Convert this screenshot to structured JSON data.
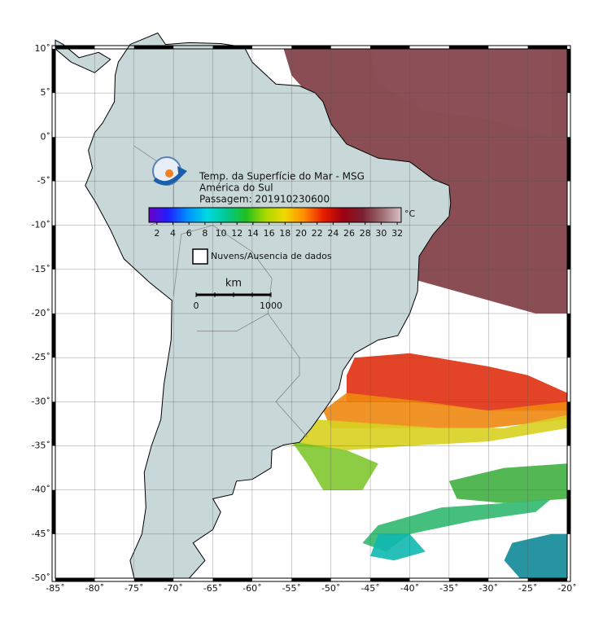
{
  "map": {
    "title_lines": [
      "Temp. da Superfície do Mar - MSG",
      "América do Sul",
      "Passagem: 201910230600"
    ],
    "xlim": [
      -85,
      -20
    ],
    "ylim": [
      -50,
      10
    ],
    "xticks": [
      {
        "value": -85,
        "label": "-85˚"
      },
      {
        "value": -80,
        "label": "-80˚"
      },
      {
        "value": -75,
        "label": "-75˚"
      },
      {
        "value": -70,
        "label": "-70˚"
      },
      {
        "value": -65,
        "label": "-65˚"
      },
      {
        "value": -60,
        "label": "-60˚"
      },
      {
        "value": -55,
        "label": "-55˚"
      },
      {
        "value": -50,
        "label": "-50˚"
      },
      {
        "value": -45,
        "label": "-45˚"
      },
      {
        "value": -40,
        "label": "-40˚"
      },
      {
        "value": -35,
        "label": "-35˚"
      },
      {
        "value": -30,
        "label": "-30˚"
      },
      {
        "value": -25,
        "label": "-25˚"
      },
      {
        "value": -20,
        "label": "-20˚"
      }
    ],
    "yticks": [
      {
        "value": 10,
        "label": "10˚"
      },
      {
        "value": 5,
        "label": "5˚"
      },
      {
        "value": 0,
        "label": "0˚"
      },
      {
        "value": -5,
        "label": "-5˚"
      },
      {
        "value": -10,
        "label": "-10˚"
      },
      {
        "value": -15,
        "label": "-15˚"
      },
      {
        "value": -20,
        "label": "-20˚"
      },
      {
        "value": -25,
        "label": "-25˚"
      },
      {
        "value": -30,
        "label": "-30˚"
      },
      {
        "value": -35,
        "label": "-35˚"
      },
      {
        "value": -40,
        "label": "-40˚"
      },
      {
        "value": -45,
        "label": "-45˚"
      },
      {
        "value": -50,
        "label": "-50˚"
      }
    ],
    "grid": true,
    "colorbar": {
      "unit": "°C",
      "lim": [
        1,
        32.5
      ],
      "ticks": [
        2,
        4,
        6,
        8,
        10,
        12,
        14,
        16,
        18,
        20,
        22,
        24,
        26,
        28,
        30,
        32
      ],
      "colors": [
        "#6a00c8",
        "#2020ff",
        "#0090ff",
        "#00d8e0",
        "#00c890",
        "#20c020",
        "#a8d800",
        "#f0d800",
        "#ff8c00",
        "#e81c00",
        "#9c0010",
        "#7a2030",
        "#9c6a70",
        "#d8c0c4"
      ]
    },
    "no_data_label": "Nuvens/Ausencia de dados",
    "scale": {
      "unit": "km",
      "ticks": [
        0,
        1000
      ]
    }
  }
}
